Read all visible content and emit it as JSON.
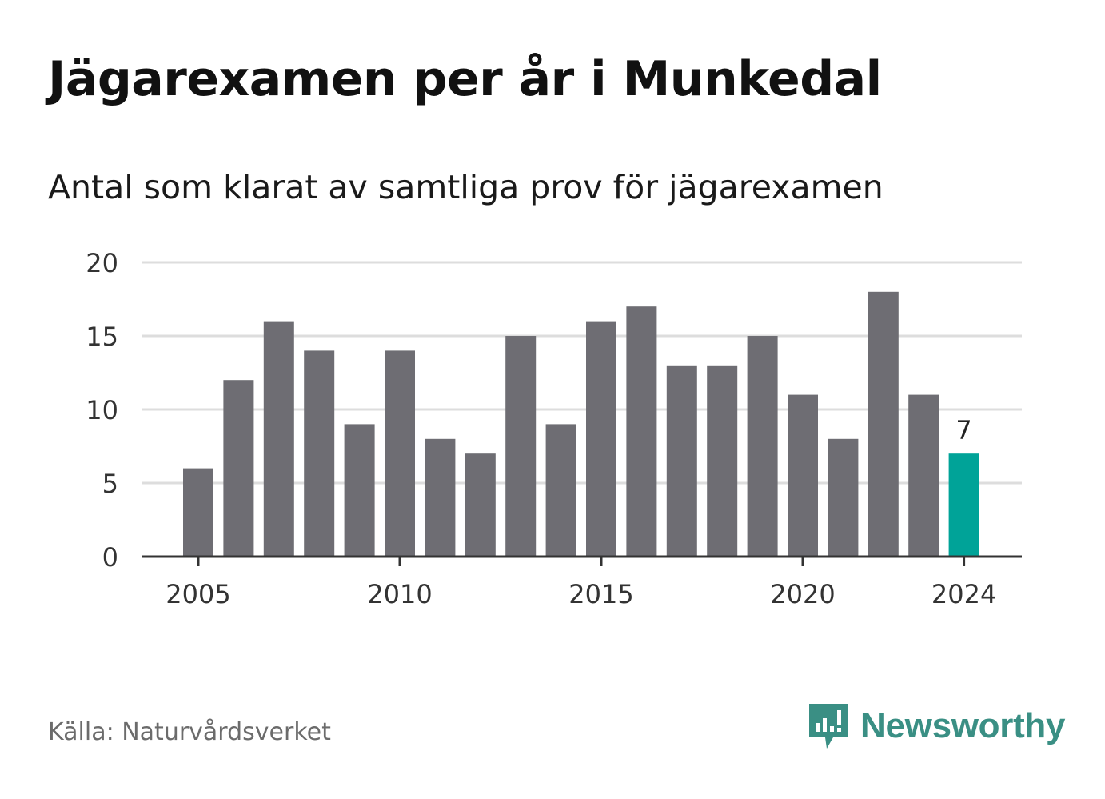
{
  "title": "Jägarexamen per år i Munkedal",
  "subtitle": "Antal som klarat av samtliga prov för jägarexamen",
  "source": "Källa: Naturvårdsverket",
  "brand": {
    "name": "Newsworthy",
    "icon": "newsworthy-logo-icon",
    "color": "#3a8f84"
  },
  "colors": {
    "bar": "#6e6d73",
    "highlight": "#00a398",
    "grid": "#dddddd",
    "axis": "#333333"
  },
  "chart_data": {
    "type": "bar",
    "categories": [
      "2005",
      "2006",
      "2007",
      "2008",
      "2009",
      "2010",
      "2011",
      "2012",
      "2013",
      "2014",
      "2015",
      "2016",
      "2017",
      "2018",
      "2019",
      "2020",
      "2021",
      "2022",
      "2023",
      "2024"
    ],
    "values": [
      6,
      12,
      16,
      14,
      9,
      14,
      8,
      7,
      15,
      9,
      16,
      17,
      13,
      13,
      15,
      11,
      8,
      18,
      11,
      7
    ],
    "highlight": "2024",
    "data_labels": [
      {
        "category": "2024",
        "text": "7"
      }
    ],
    "x_tick_labels": [
      "2005",
      "2010",
      "2015",
      "2020",
      "2024"
    ],
    "y_ticks": [
      0,
      5,
      10,
      15,
      20
    ],
    "ylim": [
      0,
      20
    ],
    "grid": true,
    "legend": "none"
  }
}
